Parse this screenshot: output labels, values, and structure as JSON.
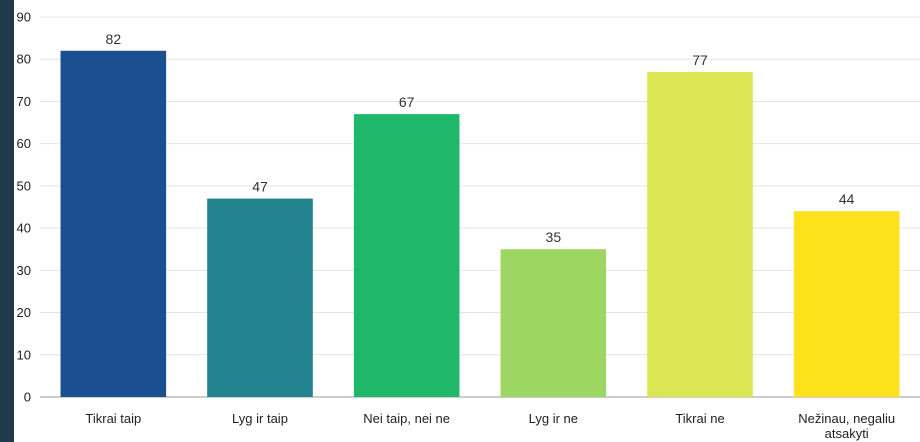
{
  "chart_data": {
    "type": "bar",
    "categories": [
      [
        "Tikrai taip"
      ],
      [
        "Lyg ir taip"
      ],
      [
        "Nei taip, nei ne"
      ],
      [
        "Lyg ir ne"
      ],
      [
        "Tikrai ne"
      ],
      [
        "Nežinau, negaliu",
        "atsakyti"
      ]
    ],
    "values": [
      82,
      47,
      67,
      35,
      77,
      44
    ],
    "colors": [
      "#1a4f92",
      "#23838f",
      "#1fb86b",
      "#9dd663",
      "#dbe752",
      "#fde21c"
    ],
    "ylim": [
      0,
      90
    ],
    "yticks": [
      0,
      10,
      20,
      30,
      40,
      50,
      60,
      70,
      80,
      90
    ],
    "grid": true,
    "legend": "none"
  }
}
